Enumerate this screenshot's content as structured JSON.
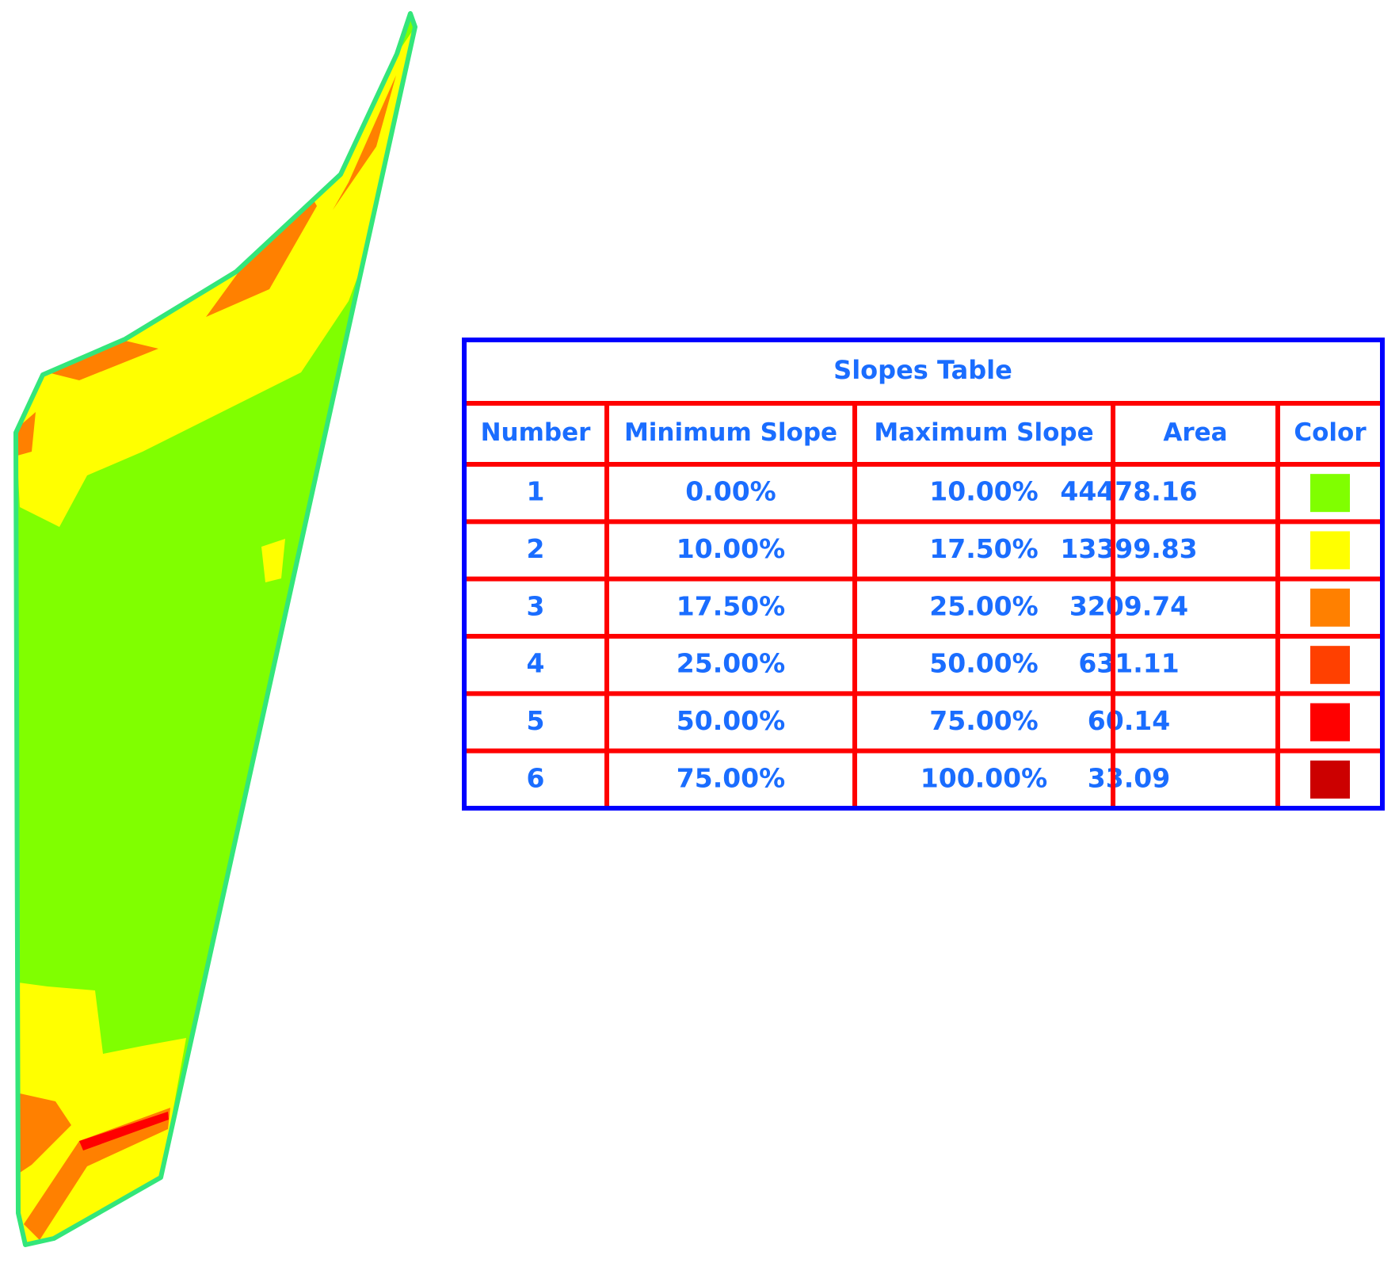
{
  "table": {
    "title": "Slopes Table",
    "columns": [
      "Number",
      "Minimum Slope",
      "Maximum Slope",
      "Area",
      "Color"
    ],
    "rows": [
      [
        "1",
        "0.00%",
        "10.00%",
        "44478.16"
      ],
      [
        "2",
        "10.00%",
        "17.50%",
        "13399.83"
      ],
      [
        "3",
        "17.50%",
        "25.00%",
        "3209.74"
      ],
      [
        "4",
        "25.00%",
        "50.00%",
        "631.11"
      ],
      [
        "5",
        "50.00%",
        "75.00%",
        "60.14"
      ],
      [
        "6",
        "75.00%",
        "100.00%",
        "33.09"
      ]
    ],
    "swatches": [
      "#80ff00",
      "#ffff00",
      "#ff8000",
      "#ff4000",
      "#ff0000",
      "#cc0000"
    ]
  }
}
